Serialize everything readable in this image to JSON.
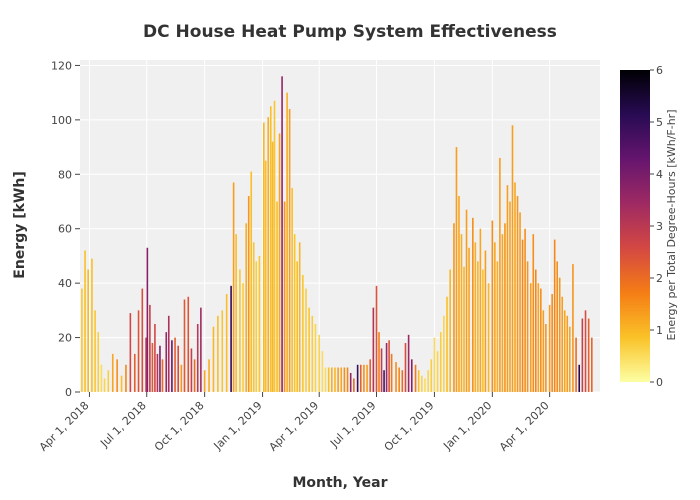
{
  "chart_data": {
    "type": "bar",
    "title": "DC House Heat Pump System Effectiveness",
    "xlabel": "Month, Year",
    "ylabel": "Energy [kWh]",
    "x_range": [
      "2018-03-17",
      "2020-06-20"
    ],
    "ylim": [
      0,
      122
    ],
    "y_ticks": [
      0,
      20,
      40,
      60,
      80,
      100,
      120
    ],
    "x_ticks": [
      {
        "date": "2018-04-01",
        "label": "Apr 1, 2018"
      },
      {
        "date": "2018-07-01",
        "label": "Jul 1, 2018"
      },
      {
        "date": "2018-10-01",
        "label": "Oct 1, 2018"
      },
      {
        "date": "2019-01-01",
        "label": "Jan 1, 2019"
      },
      {
        "date": "2019-04-01",
        "label": "Apr 1, 2019"
      },
      {
        "date": "2019-07-01",
        "label": "Jul 1, 2019"
      },
      {
        "date": "2019-10-01",
        "label": "Oct 1, 2019"
      },
      {
        "date": "2020-01-01",
        "label": "Jan 1, 2020"
      },
      {
        "date": "2020-04-01",
        "label": "Apr 1, 2020"
      }
    ],
    "colorbar": {
      "title": "Energy per Total Degree-Hours [kWh/F-hr]",
      "range": [
        0,
        6
      ],
      "ticks": [
        0,
        1,
        2,
        3,
        4,
        5,
        6
      ],
      "colorscale": [
        "#fcffa4",
        "#fac228",
        "#f57d15",
        "#d44842",
        "#9f2a63",
        "#65156e",
        "#280b53",
        "#000004"
      ]
    },
    "grid": true,
    "plot_background": "#f0f0f0",
    "series": [
      {
        "points": [
          [
            "2018-03-20",
            38,
            0.8
          ],
          [
            "2018-03-25",
            52,
            0.9
          ],
          [
            "2018-03-30",
            45,
            1.0
          ],
          [
            "2018-04-05",
            49,
            0.9
          ],
          [
            "2018-04-10",
            30,
            0.8
          ],
          [
            "2018-04-15",
            22,
            0.7
          ],
          [
            "2018-04-20",
            10,
            0.5
          ],
          [
            "2018-04-25",
            5,
            0.6
          ],
          [
            "2018-05-01",
            8,
            0.7
          ],
          [
            "2018-05-08",
            14,
            1.2
          ],
          [
            "2018-05-15",
            12,
            1.5
          ],
          [
            "2018-05-22",
            6,
            0.9
          ],
          [
            "2018-05-29",
            10,
            1.6
          ],
          [
            "2018-06-05",
            29,
            2.6
          ],
          [
            "2018-06-12",
            14,
            2.2
          ],
          [
            "2018-06-18",
            30,
            2.4
          ],
          [
            "2018-06-24",
            38,
            2.5
          ],
          [
            "2018-06-30",
            20,
            3.0
          ],
          [
            "2018-07-02",
            53,
            3.8
          ],
          [
            "2018-07-06",
            32,
            2.8
          ],
          [
            "2018-07-10",
            18,
            2.3
          ],
          [
            "2018-07-14",
            25,
            2.6
          ],
          [
            "2018-07-18",
            14,
            3.1
          ],
          [
            "2018-07-22",
            17,
            3.9
          ],
          [
            "2018-07-26",
            12,
            2.0
          ],
          [
            "2018-08-01",
            22,
            3.5
          ],
          [
            "2018-08-05",
            28,
            3.2
          ],
          [
            "2018-08-10",
            19,
            4.3
          ],
          [
            "2018-08-15",
            20,
            2.2
          ],
          [
            "2018-08-20",
            17,
            2.5
          ],
          [
            "2018-08-25",
            10,
            1.4
          ],
          [
            "2018-08-30",
            34,
            2.3
          ],
          [
            "2018-09-05",
            35,
            2.4
          ],
          [
            "2018-09-10",
            16,
            2.8
          ],
          [
            "2018-09-15",
            12,
            2.0
          ],
          [
            "2018-09-20",
            25,
            3.0
          ],
          [
            "2018-09-25",
            31,
            3.4
          ],
          [
            "2018-10-01",
            8,
            1.2
          ],
          [
            "2018-10-08",
            12,
            1.1
          ],
          [
            "2018-10-15",
            24,
            1.0
          ],
          [
            "2018-10-22",
            28,
            0.9
          ],
          [
            "2018-10-29",
            30,
            0.8
          ],
          [
            "2018-11-05",
            36,
            0.9
          ],
          [
            "2018-11-12",
            39,
            5.0
          ],
          [
            "2018-11-16",
            77,
            1.3
          ],
          [
            "2018-11-20",
            58,
            0.9
          ],
          [
            "2018-11-26",
            45,
            0.8
          ],
          [
            "2018-12-01",
            40,
            0.7
          ],
          [
            "2018-12-06",
            62,
            1.1
          ],
          [
            "2018-12-10",
            72,
            1.4
          ],
          [
            "2018-12-14",
            81,
            0.9
          ],
          [
            "2018-12-18",
            55,
            0.8
          ],
          [
            "2018-12-22",
            48,
            0.7
          ],
          [
            "2018-12-27",
            50,
            0.8
          ],
          [
            "2019-01-03",
            99,
            1.0
          ],
          [
            "2019-01-06",
            85,
            0.9
          ],
          [
            "2019-01-10",
            101,
            1.1
          ],
          [
            "2019-01-14",
            105,
            0.9
          ],
          [
            "2019-01-17",
            92,
            1.0
          ],
          [
            "2019-01-20",
            107,
            0.8
          ],
          [
            "2019-01-24",
            70,
            0.9
          ],
          [
            "2019-01-28",
            95,
            1.2
          ],
          [
            "2019-02-01",
            116,
            3.6
          ],
          [
            "2019-02-05",
            70,
            1.4
          ],
          [
            "2019-02-09",
            110,
            1.1
          ],
          [
            "2019-02-13",
            104,
            1.3
          ],
          [
            "2019-02-17",
            75,
            0.9
          ],
          [
            "2019-02-21",
            58,
            0.8
          ],
          [
            "2019-02-25",
            48,
            0.9
          ],
          [
            "2019-03-01",
            55,
            1.0
          ],
          [
            "2019-03-06",
            43,
            0.8
          ],
          [
            "2019-03-11",
            38,
            0.7
          ],
          [
            "2019-03-16",
            31,
            0.8
          ],
          [
            "2019-03-21",
            28,
            0.7
          ],
          [
            "2019-03-26",
            25,
            0.6
          ],
          [
            "2019-04-01",
            21,
            0.6
          ],
          [
            "2019-04-06",
            15,
            0.5
          ],
          [
            "2019-04-11",
            9,
            0.5
          ],
          [
            "2019-04-16",
            9,
            0.9
          ],
          [
            "2019-04-21",
            9,
            1.1
          ],
          [
            "2019-04-26",
            9,
            1.0
          ],
          [
            "2019-05-01",
            9,
            1.3
          ],
          [
            "2019-05-06",
            9,
            1.2
          ],
          [
            "2019-05-11",
            9,
            1.5
          ],
          [
            "2019-05-16",
            9,
            1.6
          ],
          [
            "2019-05-21",
            7,
            3.6
          ],
          [
            "2019-05-26",
            5,
            2.0
          ],
          [
            "2019-06-01",
            10,
            4.9
          ],
          [
            "2019-06-06",
            10,
            2.2
          ],
          [
            "2019-06-11",
            10,
            1.5
          ],
          [
            "2019-06-16",
            10,
            1.3
          ],
          [
            "2019-06-21",
            12,
            2.2
          ],
          [
            "2019-06-26",
            31,
            3.1
          ],
          [
            "2019-07-01",
            39,
            2.4
          ],
          [
            "2019-07-05",
            22,
            1.7
          ],
          [
            "2019-07-09",
            16,
            2.9
          ],
          [
            "2019-07-13",
            8,
            4.7
          ],
          [
            "2019-07-17",
            18,
            3.5
          ],
          [
            "2019-07-21",
            19,
            2.4
          ],
          [
            "2019-07-25",
            14,
            1.8
          ],
          [
            "2019-08-01",
            11,
            1.5
          ],
          [
            "2019-08-06",
            9,
            1.6
          ],
          [
            "2019-08-11",
            8,
            2.0
          ],
          [
            "2019-08-16",
            18,
            2.5
          ],
          [
            "2019-08-21",
            21,
            3.5
          ],
          [
            "2019-08-26",
            12,
            3.8
          ],
          [
            "2019-09-01",
            10,
            1.8
          ],
          [
            "2019-09-06",
            8,
            0.9
          ],
          [
            "2019-09-11",
            6,
            0.6
          ],
          [
            "2019-09-16",
            5,
            0.5
          ],
          [
            "2019-09-21",
            8,
            0.6
          ],
          [
            "2019-09-26",
            12,
            0.7
          ],
          [
            "2019-10-01",
            20,
            0.5
          ],
          [
            "2019-10-06",
            15,
            0.6
          ],
          [
            "2019-10-11",
            22,
            0.7
          ],
          [
            "2019-10-16",
            28,
            0.6
          ],
          [
            "2019-10-21",
            35,
            0.9
          ],
          [
            "2019-10-26",
            45,
            1.0
          ],
          [
            "2019-11-01",
            62,
            1.4
          ],
          [
            "2019-11-05",
            90,
            1.3
          ],
          [
            "2019-11-09",
            72,
            1.2
          ],
          [
            "2019-11-13",
            58,
            1.1
          ],
          [
            "2019-11-17",
            46,
            1.0
          ],
          [
            "2019-11-21",
            67,
            1.3
          ],
          [
            "2019-11-25",
            53,
            1.2
          ],
          [
            "2019-12-01",
            64,
            1.5
          ],
          [
            "2019-12-05",
            55,
            1.1
          ],
          [
            "2019-12-09",
            48,
            1.0
          ],
          [
            "2019-12-13",
            60,
            1.2
          ],
          [
            "2019-12-17",
            45,
            0.9
          ],
          [
            "2019-12-21",
            52,
            1.3
          ],
          [
            "2019-12-26",
            40,
            1.0
          ],
          [
            "2020-01-01",
            63,
            1.5
          ],
          [
            "2020-01-05",
            55,
            1.2
          ],
          [
            "2020-01-09",
            48,
            1.1
          ],
          [
            "2020-01-13",
            86,
            1.3
          ],
          [
            "2020-01-17",
            58,
            1.2
          ],
          [
            "2020-01-21",
            62,
            1.4
          ],
          [
            "2020-01-25",
            76,
            1.3
          ],
          [
            "2020-01-29",
            70,
            1.2
          ],
          [
            "2020-02-02",
            98,
            1.3
          ],
          [
            "2020-02-06",
            77,
            1.2
          ],
          [
            "2020-02-10",
            72,
            1.4
          ],
          [
            "2020-02-14",
            66,
            1.3
          ],
          [
            "2020-02-18",
            56,
            1.6
          ],
          [
            "2020-02-22",
            60,
            1.5
          ],
          [
            "2020-02-26",
            48,
            1.4
          ],
          [
            "2020-03-02",
            40,
            1.3
          ],
          [
            "2020-03-06",
            58,
            1.5
          ],
          [
            "2020-03-10",
            45,
            1.6
          ],
          [
            "2020-03-14",
            40,
            1.2
          ],
          [
            "2020-03-18",
            38,
            1.5
          ],
          [
            "2020-03-22",
            30,
            1.3
          ],
          [
            "2020-03-26",
            25,
            1.4
          ],
          [
            "2020-04-01",
            32,
            1.3
          ],
          [
            "2020-04-05",
            36,
            1.5
          ],
          [
            "2020-04-09",
            56,
            1.6
          ],
          [
            "2020-04-13",
            48,
            1.5
          ],
          [
            "2020-04-17",
            42,
            1.4
          ],
          [
            "2020-04-21",
            35,
            1.3
          ],
          [
            "2020-04-25",
            30,
            1.2
          ],
          [
            "2020-04-29",
            28,
            1.3
          ],
          [
            "2020-05-03",
            24,
            1.2
          ],
          [
            "2020-05-08",
            47,
            1.4
          ],
          [
            "2020-05-13",
            20,
            2.0
          ],
          [
            "2020-05-18",
            10,
            5.2
          ],
          [
            "2020-05-23",
            27,
            2.8
          ],
          [
            "2020-05-28",
            30,
            2.5
          ],
          [
            "2020-06-02",
            27,
            2.2
          ],
          [
            "2020-06-07",
            20,
            2.1
          ]
        ]
      }
    ]
  }
}
